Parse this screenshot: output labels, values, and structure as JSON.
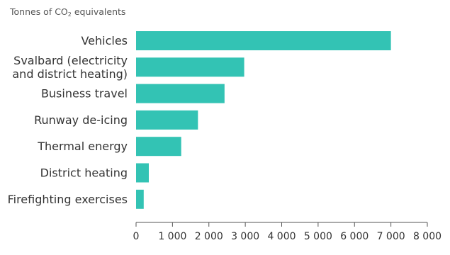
{
  "chart_data": {
    "type": "bar",
    "orientation": "horizontal",
    "unit_label": {
      "prefix": "Tonnes of CO",
      "subscript": "2",
      "suffix": " equivalents"
    },
    "categories": [
      [
        "Vehicles"
      ],
      [
        "Svalbard (electricity",
        "and district heating)"
      ],
      [
        "Business travel"
      ],
      [
        "Runway de-icing"
      ],
      [
        "Thermal energy"
      ],
      [
        "District heating"
      ],
      [
        "Firefighting exercises"
      ]
    ],
    "values": [
      7000,
      2970,
      2430,
      1700,
      1240,
      350,
      210
    ],
    "xlim": [
      0,
      8000
    ],
    "xticks": [
      0,
      1000,
      2000,
      3000,
      4000,
      5000,
      6000,
      7000,
      8000
    ],
    "xtick_labels": [
      "0",
      "1 000",
      "2 000",
      "3 000",
      "4 000",
      "5 000",
      "6 000",
      "7 000",
      "8 000"
    ],
    "grid": false,
    "legend": "none",
    "colors": {
      "bar": "#33c3b4",
      "axis": "#555555",
      "text": "#333333"
    }
  }
}
